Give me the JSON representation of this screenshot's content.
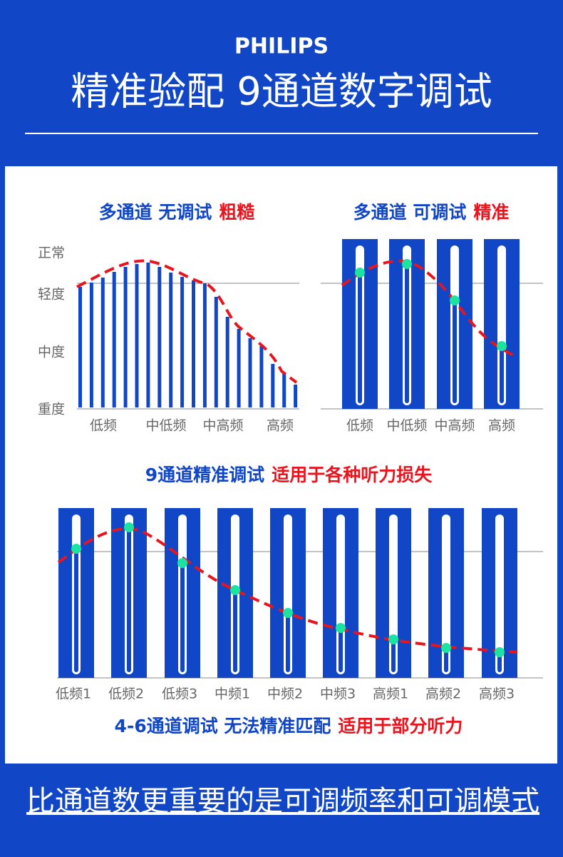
{
  "header": {
    "brand": "PHILIPS",
    "title": "精准验配 9通道数字调试"
  },
  "left_panel": {
    "title": "多通道 无调试",
    "tag": "粗糙",
    "y_labels": [
      "正常",
      "轻度",
      "中度",
      "重度"
    ],
    "x_labels": [
      "低频",
      "中低频",
      "中高频",
      "高频"
    ]
  },
  "right_panel": {
    "title": "多通道 可调试",
    "tag": "精准",
    "x_labels": [
      "低频",
      "中低频",
      "中高频",
      "高频"
    ]
  },
  "nine_channel": {
    "title": "9通道精准调试",
    "tag": "适用于各种听力损失",
    "x_labels": [
      "低频1",
      "低频2",
      "低频3",
      "中频1",
      "中频2",
      "中频3",
      "高频1",
      "高频2",
      "高频3"
    ]
  },
  "note": {
    "text": "4-6通道调试 无法精准匹配",
    "tag": "适用于部分听力"
  },
  "footer": {
    "text": "比通道数更重要的是可调频率和可调模式"
  }
}
